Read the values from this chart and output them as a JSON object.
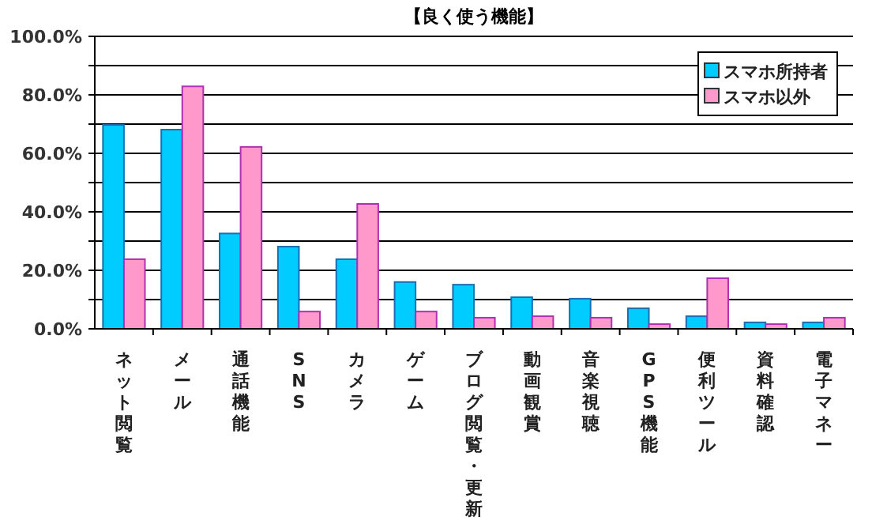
{
  "chart_data": {
    "type": "bar",
    "title": "【良く使う機能】",
    "categories": [
      "ネット閲覧",
      "メール",
      "通話機能",
      "SNS",
      "カメラ",
      "ゲーム",
      "ブログ閲覧・更新",
      "動画観賞",
      "音楽視聴",
      "GPS機能",
      "便利ツール",
      "資料確認",
      "電子マネー"
    ],
    "series": [
      {
        "name": "スマホ所持者",
        "color": "#00ccff",
        "values": [
          69.7,
          68.1,
          32.6,
          28.1,
          23.8,
          16.0,
          15.1,
          10.8,
          10.3,
          7.0,
          4.3,
          2.2,
          2.2
        ]
      },
      {
        "name": "スマホ以外",
        "color": "#ff99cc",
        "values": [
          23.8,
          82.9,
          62.2,
          5.9,
          42.7,
          5.9,
          3.8,
          4.3,
          3.8,
          1.6,
          17.3,
          1.6,
          3.8
        ]
      }
    ],
    "ylim": [
      0,
      100
    ],
    "yticks": [
      {
        "value": 0,
        "label": "0.0%"
      },
      {
        "value": 10,
        "label": null
      },
      {
        "value": 20,
        "label": "20.0%"
      },
      {
        "value": 30,
        "label": null
      },
      {
        "value": 40,
        "label": "40.0%"
      },
      {
        "value": 50,
        "label": null
      },
      {
        "value": 60,
        "label": "60.0%"
      },
      {
        "value": 70,
        "label": null
      },
      {
        "value": 80,
        "label": "80.0%"
      },
      {
        "value": 90,
        "label": null
      },
      {
        "value": 100,
        "label": "100.0%"
      }
    ],
    "grid": "y",
    "legend": "top right"
  }
}
